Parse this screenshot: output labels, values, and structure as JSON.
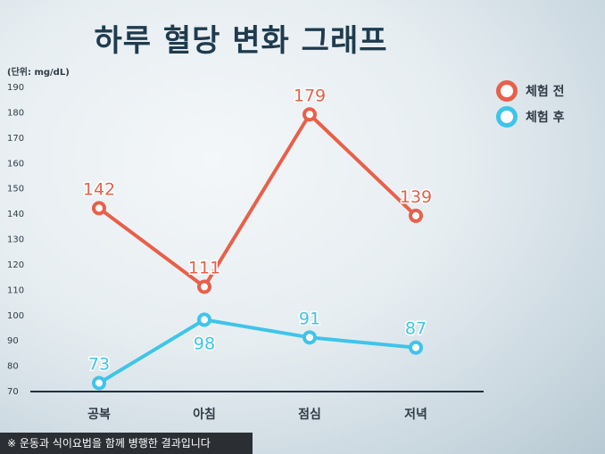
{
  "header": {
    "title": "하루 혈당 변화 그래프",
    "unit_label": "(단위: mg/dL)"
  },
  "footnote": "※ 운동과 식이요법을 함께 병행한 결과입니다",
  "colors": {
    "before": "#e8604a",
    "after": "#3fc4ea",
    "axis": "#1f2f3f",
    "label_text": "#2f3b45"
  },
  "chart_data": {
    "type": "line",
    "title": "하루 혈당 변화 그래프",
    "xlabel": "",
    "ylabel": "(단위: mg/dL)",
    "categories": [
      "공복",
      "아침",
      "점심",
      "저녁"
    ],
    "ylim": [
      70,
      190
    ],
    "yticks": [
      70,
      80,
      90,
      100,
      110,
      120,
      130,
      140,
      150,
      160,
      170,
      180,
      190
    ],
    "grid": false,
    "legend": "top-right",
    "series": [
      {
        "name": "체험 전",
        "color": "#e8604a",
        "values": [
          142,
          111,
          179,
          139
        ]
      },
      {
        "name": "체험 후",
        "color": "#3fc4ea",
        "values": [
          73,
          98,
          91,
          87
        ]
      }
    ]
  }
}
